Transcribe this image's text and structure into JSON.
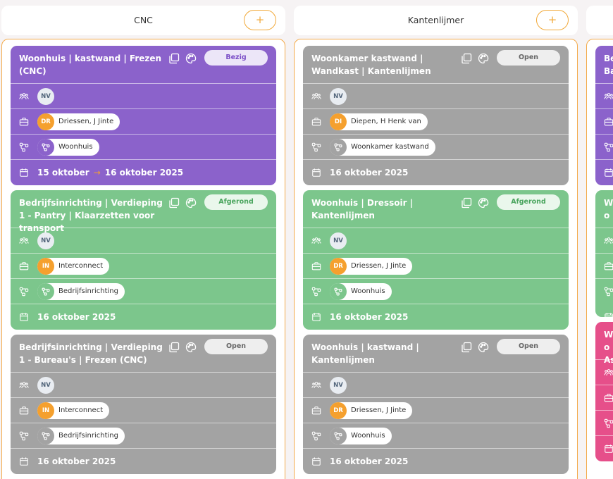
{
  "columns": [
    {
      "title": "CNC",
      "add_label": "+",
      "cards": [
        {
          "color": "purple",
          "title": "Woonhuis | kastwand | Frezen (CNC)",
          "status": "Bezig",
          "status_kind": "bezig",
          "team": "NV",
          "client_initials": "DR",
          "client": "Driessen, J Jinte",
          "project": "Woonhuis",
          "date_start": "15 oktober",
          "date_end": "16 oktober 2025"
        },
        {
          "color": "green",
          "title": "Bedrijfsinrichting | Verdieping 1 - Pantry | Klaarzetten voor transport",
          "status": "Afgerond",
          "status_kind": "afgerond",
          "team": "NV",
          "client_initials": "IN",
          "client": "Interconnect",
          "project": "Bedrijfsinrichting",
          "date_start": "16 oktober 2025"
        },
        {
          "color": "grey",
          "title": "Bedrijfsinrichting | Verdieping 1 - Bureau's | Frezen (CNC)",
          "status": "Open",
          "status_kind": "open",
          "team": "NV",
          "client_initials": "IN",
          "client": "Interconnect",
          "project": "Bedrijfsinrichting",
          "date_start": "16 oktober 2025"
        }
      ]
    },
    {
      "title": "Kantenlijmer",
      "add_label": "+",
      "cards": [
        {
          "color": "grey",
          "title": "Woonkamer kastwand | Wandkast | Kantenlijmen",
          "status": "Open",
          "status_kind": "open",
          "team": "NV",
          "client_initials": "DI",
          "client": "Diepen, H Henk van",
          "project": "Woonkamer kastwand",
          "date_start": "16 oktober 2025"
        },
        {
          "color": "green",
          "title": "Woonhuis | Dressoir | Kantenlijmen",
          "status": "Afgerond",
          "status_kind": "afgerond",
          "team": "NV",
          "client_initials": "DR",
          "client": "Driessen, J Jinte",
          "project": "Woonhuis",
          "date_start": "16 oktober 2025"
        },
        {
          "color": "grey",
          "title": "Woonhuis | kastwand | Kantenlijmen",
          "status": "Open",
          "status_kind": "open",
          "team": "NV",
          "client_initials": "DR",
          "client": "Driessen, J Jinte",
          "project": "Woonhuis",
          "date_start": "16 oktober 2025"
        }
      ]
    },
    {
      "title": "",
      "cards_partial": [
        {
          "color": "purple",
          "title": "Be Ba"
        },
        {
          "color": "green",
          "title": "Wo"
        },
        {
          "color": "pink",
          "title": "Wo As"
        }
      ]
    }
  ],
  "colors": {
    "purple": "#8b62cb",
    "green": "#7cc68c",
    "grey": "#a3a3a3",
    "pink": "#e64f8a",
    "accent": "#f5a02e"
  }
}
